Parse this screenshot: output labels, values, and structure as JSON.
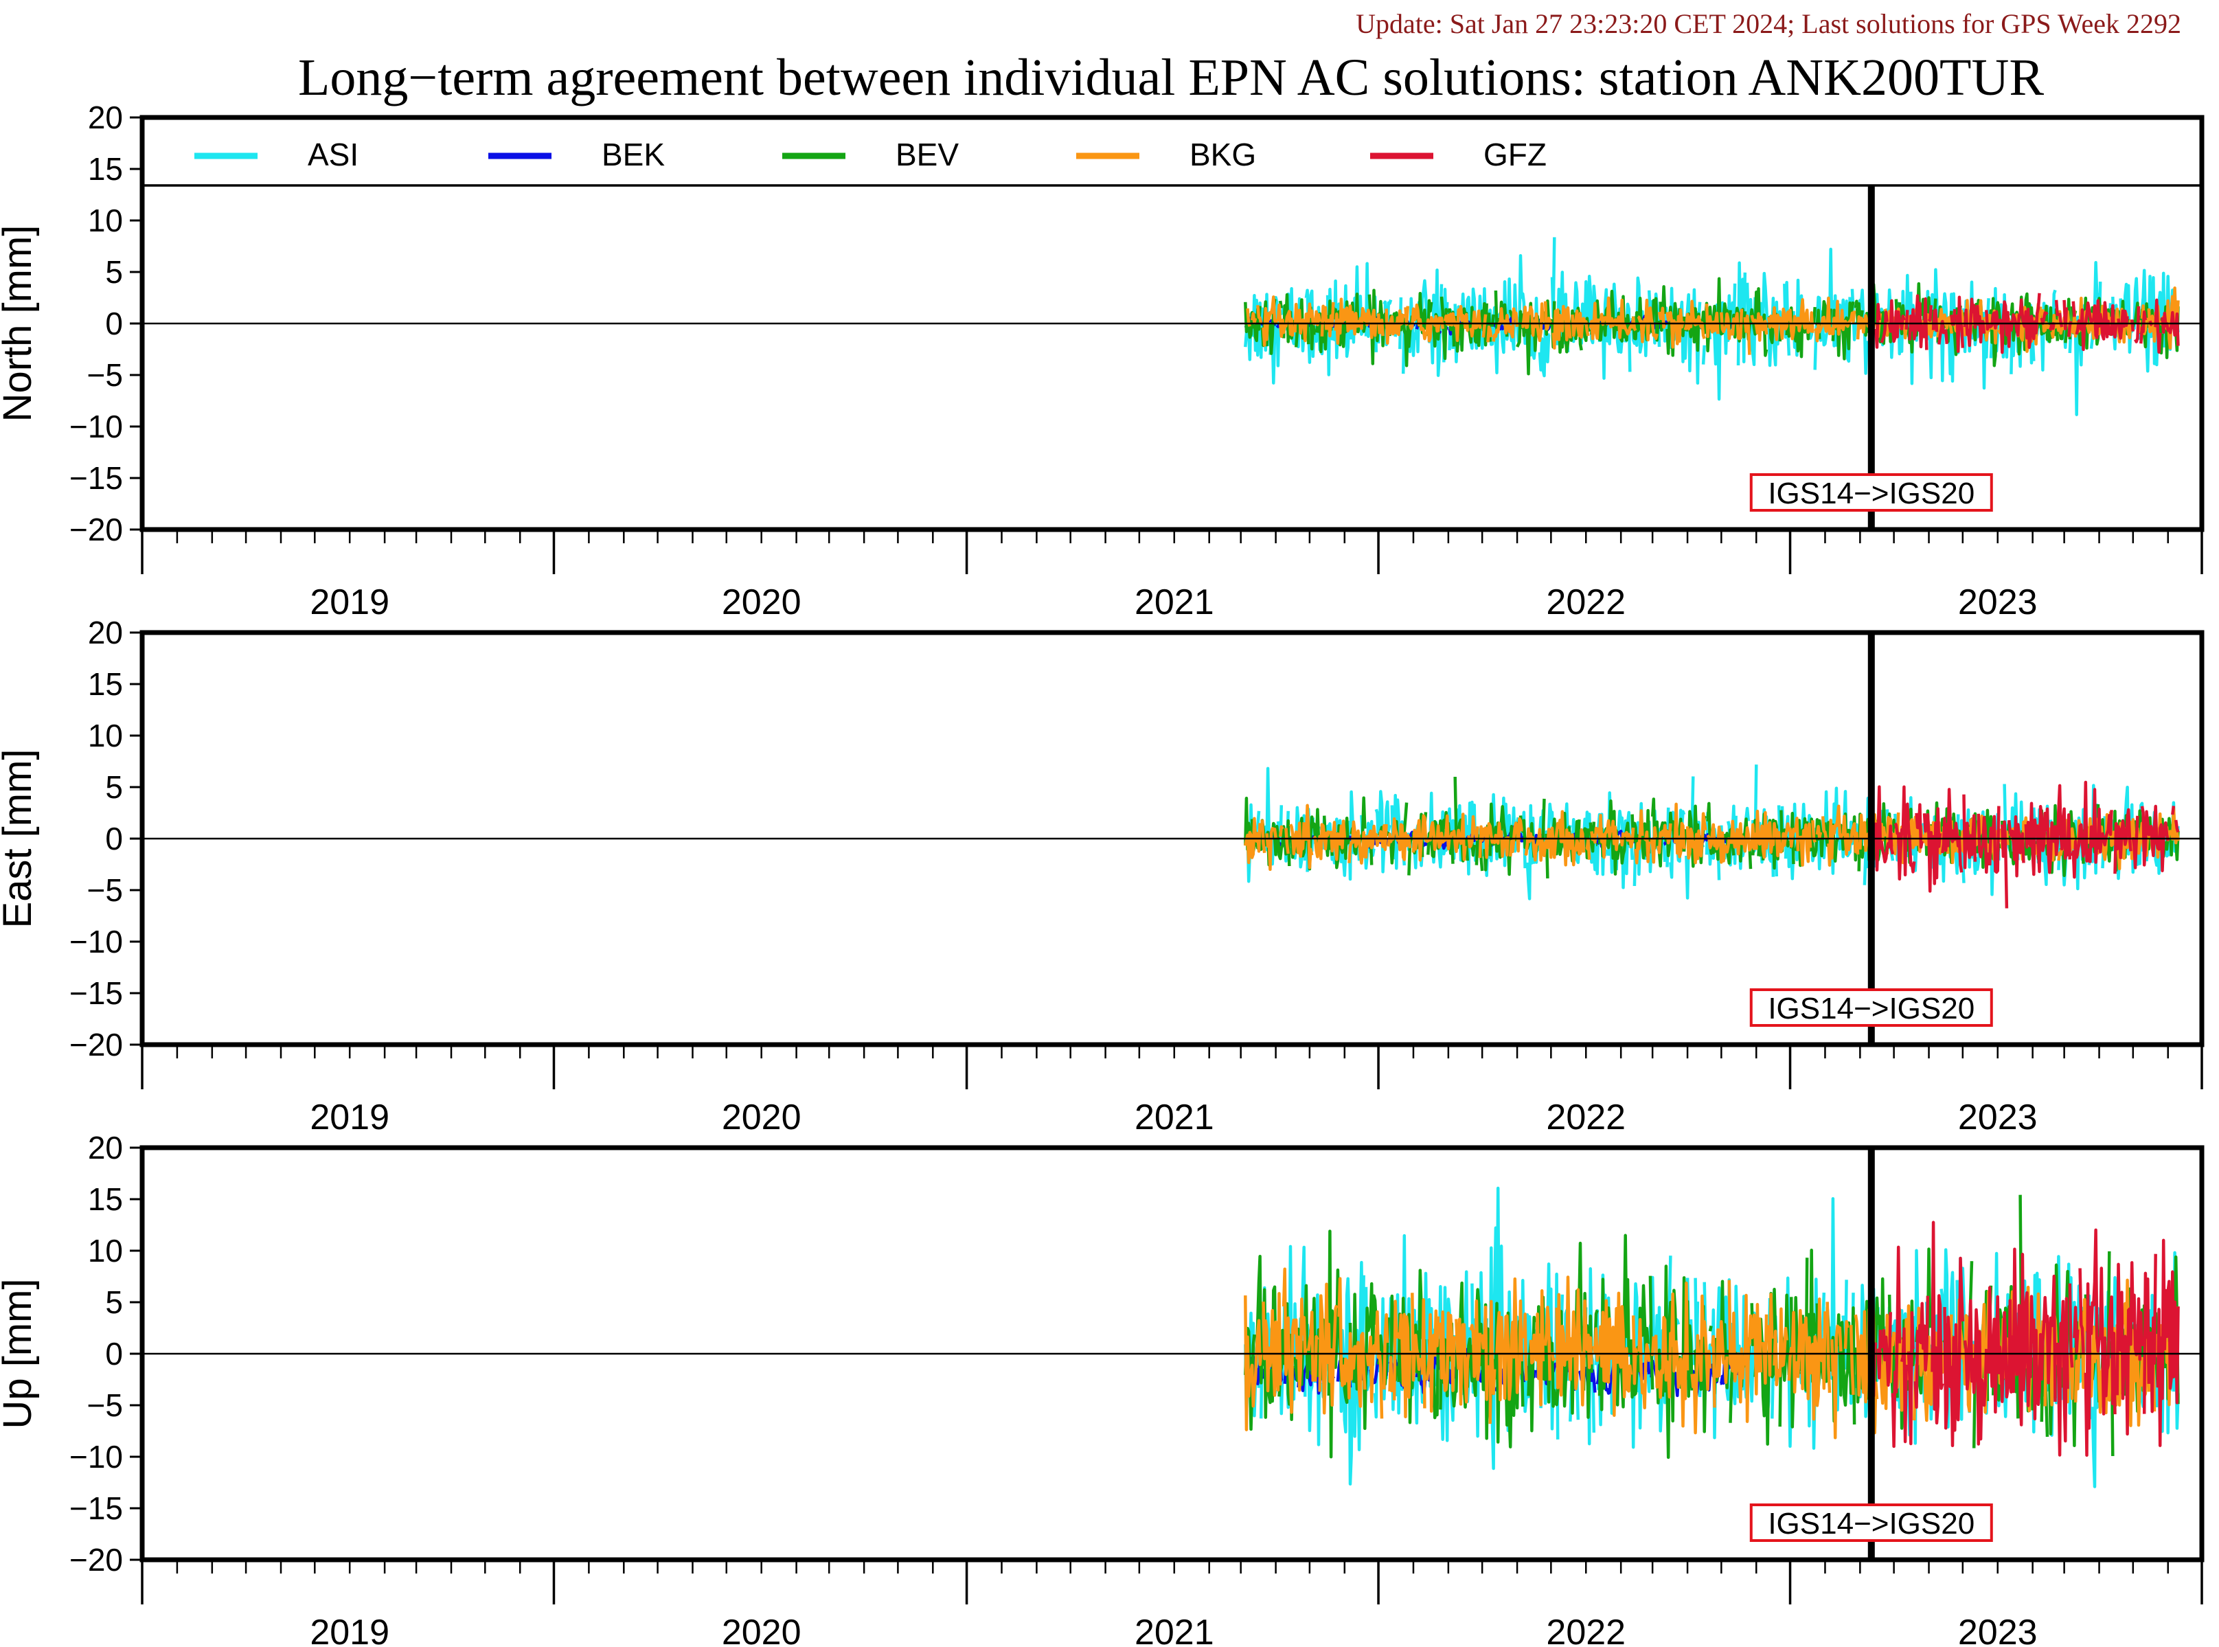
{
  "update_text": "Update: Sat Jan 27 23:23:20 CET 2024; Last solutions for GPS Week 2292",
  "title": "Long−term agreement between individual EPN AC solutions: station ANK200TUR",
  "colors": {
    "update_text": "#8b1a1a",
    "annotation_box": "#e4141c",
    "ASI": "#1ee6f0",
    "BEK": "#0a10e6",
    "BEV": "#14a514",
    "BKG": "#fa9614",
    "GFZ": "#dc1432"
  },
  "legend": {
    "placement": "top",
    "entries": [
      {
        "name": "ASI",
        "color": "#1ee6f0"
      },
      {
        "name": "BEK",
        "color": "#0a10e6"
      },
      {
        "name": "BEV",
        "color": "#14a514"
      },
      {
        "name": "BKG",
        "color": "#fa9614"
      },
      {
        "name": "GFZ",
        "color": "#dc1432"
      }
    ]
  },
  "chart_data": [
    {
      "type": "line",
      "ylabel": "North [mm]",
      "ylim": [
        -20,
        20
      ],
      "yticks": [
        "20",
        "15",
        "10",
        "5",
        "0",
        "−5",
        "−10",
        "−15",
        "−20"
      ],
      "xlim": [
        "2018-07-01",
        "2023-07-01"
      ],
      "xtick_labels": [
        "2019",
        "2020",
        "2021",
        "2022",
        "2023"
      ],
      "reference_line": {
        "date": "2022-09-11",
        "label": "IGS14−>IGS20"
      },
      "amplitude_mm": {
        "ASI": 2.2,
        "BEK": 0.5,
        "BEV": 1.3,
        "BKG": 0.9,
        "GFZ": 1.3
      },
      "series_range": {
        "ASI": [
          "2021-03-05",
          "2023-06-10"
        ],
        "BEK": [
          "2021-03-05",
          "2022-05-20"
        ],
        "BEV": [
          "2021-03-05",
          "2023-06-10"
        ],
        "BKG": [
          "2021-03-05",
          "2023-06-10"
        ],
        "GFZ": [
          "2022-09-11",
          "2023-06-10"
        ]
      },
      "legend_inside": true
    },
    {
      "type": "line",
      "ylabel": "East [mm]",
      "ylim": [
        -20,
        20
      ],
      "yticks": [
        "20",
        "15",
        "10",
        "5",
        "0",
        "−5",
        "−10",
        "−15",
        "−20"
      ],
      "xlim": [
        "2018-07-01",
        "2023-07-01"
      ],
      "xtick_labels": [
        "2019",
        "2020",
        "2021",
        "2022",
        "2023"
      ],
      "reference_line": {
        "date": "2022-09-11",
        "label": "IGS14−>IGS20"
      },
      "amplitude_mm": {
        "ASI": 1.9,
        "BEK": 0.6,
        "BEV": 1.4,
        "BKG": 1.1,
        "GFZ": 2.0
      },
      "series_range": {
        "ASI": [
          "2021-03-05",
          "2023-06-10"
        ],
        "BEK": [
          "2021-03-05",
          "2022-05-20"
        ],
        "BEV": [
          "2021-03-05",
          "2023-06-10"
        ],
        "BKG": [
          "2021-03-05",
          "2023-06-10"
        ],
        "GFZ": [
          "2022-09-11",
          "2023-06-10"
        ]
      },
      "legend_inside": false
    },
    {
      "type": "line",
      "ylabel": "Up [mm]",
      "ylim": [
        -20,
        20
      ],
      "yticks": [
        "20",
        "15",
        "10",
        "5",
        "0",
        "−5",
        "−10",
        "−15",
        "−20"
      ],
      "xlim": [
        "2018-07-01",
        "2023-07-01"
      ],
      "xtick_labels": [
        "2019",
        "2020",
        "2021",
        "2022",
        "2023"
      ],
      "reference_line": {
        "date": "2022-09-11",
        "label": "IGS14−>IGS20"
      },
      "amplitude_mm": {
        "ASI": 4.2,
        "BEK": 1.6,
        "BEV": 3.6,
        "BKG": 3.0,
        "GFZ": 4.2
      },
      "series_range": {
        "ASI": [
          "2021-03-05",
          "2023-06-10"
        ],
        "BEK": [
          "2021-03-05",
          "2022-05-20"
        ],
        "BEV": [
          "2021-03-05",
          "2023-06-10"
        ],
        "BKG": [
          "2021-03-05",
          "2023-06-10"
        ],
        "GFZ": [
          "2022-09-11",
          "2023-06-10"
        ]
      },
      "legend_inside": false
    }
  ]
}
